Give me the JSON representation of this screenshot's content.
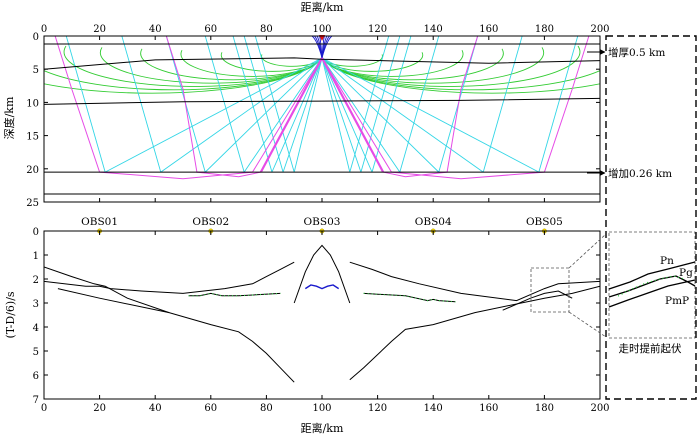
{
  "chart_data": [
    {
      "type": "diagram",
      "panel": "ray-tracing",
      "xlabel": "距离/km",
      "ylabel": "深度/km",
      "xlim": [
        0,
        200
      ],
      "ylim": [
        25,
        0
      ],
      "x_ticks": [
        "0",
        "20",
        "40",
        "60",
        "80",
        "100",
        "120",
        "140",
        "160",
        "180",
        "200"
      ],
      "y_ticks": [
        "0",
        "5",
        "10",
        "15",
        "20",
        "25"
      ],
      "source_x": 100,
      "interfaces": [
        {
          "x": [
            0,
            200
          ],
          "y": [
            1.2,
            1.2
          ]
        },
        {
          "x": [
            0,
            40,
            90,
            100,
            130,
            160,
            200
          ],
          "y": [
            5.0,
            3.6,
            3.3,
            3.5,
            3.8,
            4.1,
            3.7
          ]
        },
        {
          "x": [
            0,
            50,
            100,
            150,
            200
          ],
          "y": [
            10.3,
            9.9,
            9.8,
            9.7,
            9.4
          ]
        },
        {
          "x": [
            0,
            200
          ],
          "y": [
            20.5,
            20.5
          ]
        },
        {
          "x": [
            0,
            200
          ],
          "y": [
            23.8,
            23.8
          ]
        }
      ],
      "annotations": [
        "增厚0.5 km",
        "增加0.26 km"
      ]
    },
    {
      "type": "line",
      "panel": "travel-time",
      "xlabel": "距离/km",
      "ylabel": "(T-D/6)/s",
      "xlim": [
        0,
        200
      ],
      "ylim": [
        7,
        0
      ],
      "x_ticks": [
        "0",
        "20",
        "40",
        "60",
        "80",
        "100",
        "120",
        "140",
        "160",
        "180",
        "200"
      ],
      "y_ticks": [
        "0",
        "1",
        "2",
        "3",
        "4",
        "5",
        "6",
        "7"
      ],
      "stations": [
        {
          "name": "OBS01",
          "x": 20
        },
        {
          "name": "OBS02",
          "x": 60
        },
        {
          "name": "OBS03",
          "x": 100
        },
        {
          "name": "OBS04",
          "x": 140
        },
        {
          "name": "OBS05",
          "x": 180
        }
      ],
      "series": [
        {
          "x": [
            0,
            10,
            18,
            22,
            30,
            45
          ],
          "y": [
            1.5,
            1.9,
            2.2,
            2.3,
            2.8,
            3.4
          ]
        },
        {
          "x": [
            0,
            15,
            20,
            24,
            35,
            50,
            65,
            75,
            80,
            85,
            90
          ],
          "y": [
            2.1,
            2.3,
            2.3,
            2.4,
            2.5,
            2.6,
            2.4,
            2.2,
            1.9,
            1.6,
            1.3
          ]
        },
        {
          "x": [
            5,
            20,
            45,
            60,
            70,
            75,
            80,
            85,
            90
          ],
          "y": [
            2.4,
            2.8,
            3.4,
            3.9,
            4.2,
            4.6,
            5.1,
            5.7,
            6.3
          ]
        },
        {
          "x": [
            110,
            115,
            125,
            130,
            140,
            155,
            180,
            190,
            200
          ],
          "y": [
            6.2,
            5.7,
            4.6,
            4.1,
            3.9,
            3.4,
            2.8,
            2.6,
            2.3
          ]
        },
        {
          "x": [
            110,
            118,
            125,
            135,
            150,
            170,
            180,
            185,
            200
          ],
          "y": [
            1.3,
            1.6,
            1.9,
            2.2,
            2.6,
            2.9,
            2.4,
            2.2,
            2.1
          ]
        },
        {
          "x": [
            165,
            175,
            180,
            185,
            190
          ],
          "y": [
            3.3,
            2.8,
            2.6,
            2.5,
            2.8
          ]
        },
        {
          "x": [
            52,
            56,
            60,
            64,
            70,
            85
          ],
          "y": [
            2.7,
            2.7,
            2.6,
            2.7,
            2.7,
            2.6
          ]
        },
        {
          "x": [
            115,
            130,
            138,
            140,
            142,
            148
          ],
          "y": [
            2.6,
            2.7,
            2.9,
            2.85,
            2.9,
            2.95
          ]
        },
        {
          "x": [
            90,
            94,
            97,
            100,
            103,
            106,
            110
          ],
          "y": [
            3.0,
            1.7,
            1.0,
            0.6,
            1.0,
            1.7,
            3.0
          ]
        },
        {
          "x": [
            94,
            96,
            98,
            100,
            102,
            104,
            106
          ],
          "y": [
            2.4,
            2.25,
            2.3,
            2.4,
            2.3,
            2.25,
            2.4
          ]
        }
      ],
      "inset": {
        "labels": [
          "Pn",
          "Pg",
          "PmP"
        ],
        "caption": "走时提前起伏"
      }
    }
  ]
}
